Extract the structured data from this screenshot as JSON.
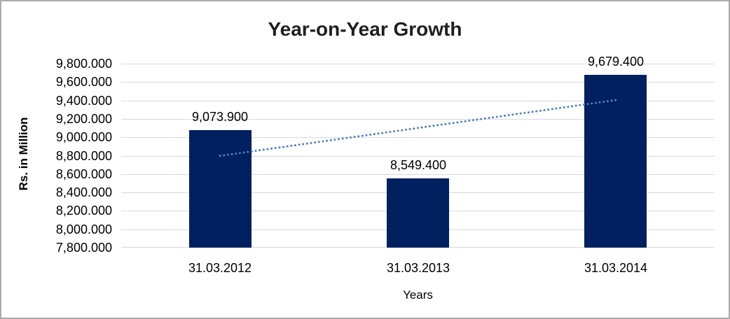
{
  "chart_data": {
    "type": "bar",
    "title": "Year-on-Year Growth",
    "xlabel": "Years",
    "ylabel": "Rs. in Million",
    "categories": [
      "31.03.2012",
      "31.03.2013",
      "31.03.2014"
    ],
    "values": [
      9073.9,
      8549.4,
      9679.4
    ],
    "value_labels": [
      "9,073.900",
      "8,549.400",
      "9,679.400"
    ],
    "ylim": [
      7800,
      9800
    ],
    "ytick_step": 200,
    "ytick_labels": [
      "9,800.000",
      "9,600.000",
      "9,400.000",
      "9,200.000",
      "9,000.000",
      "8,800.000",
      "8,600.000",
      "8,400.000",
      "8,200.000",
      "8,000.000",
      "7,800.000"
    ],
    "grid": true,
    "legend": "none",
    "bar_color": "#002060",
    "gridline_color": "#d9d9d9",
    "text_color": "#000000",
    "title_color": "#1f1f1f",
    "trendline": {
      "type": "linear",
      "style": "dotted",
      "color": "#4f81bd",
      "start_value": 8798,
      "end_value": 9404
    }
  }
}
